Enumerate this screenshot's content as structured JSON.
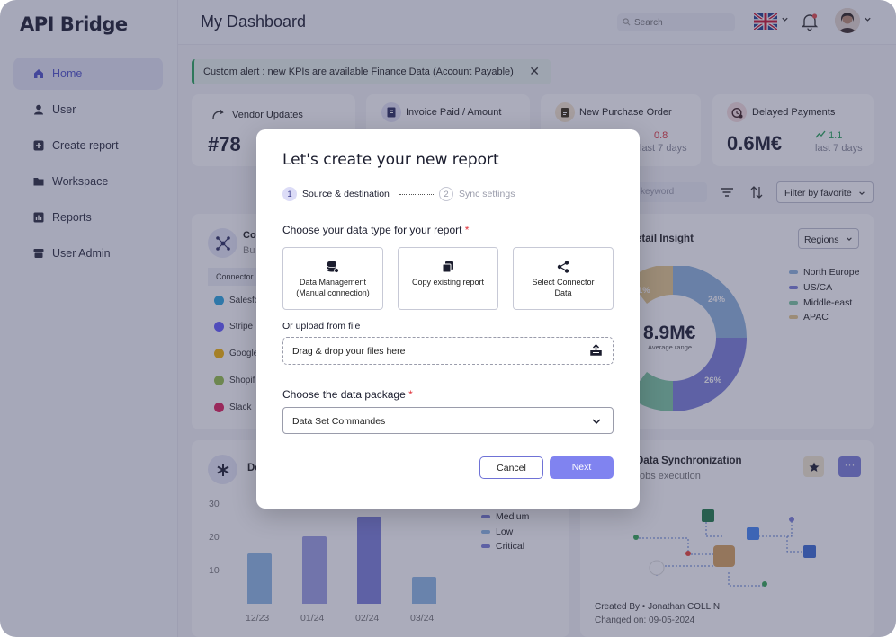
{
  "app": {
    "brand": "API Bridge"
  },
  "sidebar": {
    "items": [
      {
        "label": "Home",
        "icon": "home-icon",
        "active": true
      },
      {
        "label": "User",
        "icon": "user-icon"
      },
      {
        "label": "Create report",
        "icon": "plus-square-icon"
      },
      {
        "label": "Workspace",
        "icon": "folder-icon"
      },
      {
        "label": "Reports",
        "icon": "bar-chart-icon"
      },
      {
        "label": "User Admin",
        "icon": "admin-icon"
      }
    ]
  },
  "header": {
    "title": "My Dashboard",
    "search_placeholder": "Search"
  },
  "alert": {
    "text": "Custom alert : new KPIs are available Finance Data (Account Payable)"
  },
  "kpis": [
    {
      "title": "Vendor Updates",
      "value": "#78"
    },
    {
      "title": "Invoice Paid / Amount"
    },
    {
      "title": "New Purchase Order",
      "change": "0.8",
      "period": "last 7 days"
    },
    {
      "title": "Delayed Payments",
      "value": "0.6M€",
      "change": "1.1",
      "period": "last 7 days"
    }
  ],
  "toolbar": {
    "keyword_placeholder": "keyword",
    "filter_label": "Filter by favorite"
  },
  "connectors": {
    "title_fragment": "Co",
    "subtitle_fragment": "Bu",
    "header_fragment": "Connector",
    "items": [
      "Salesfo",
      "Stripe",
      "Google",
      "Shopif",
      "Slack"
    ]
  },
  "retail": {
    "title_fragment": "etail Insight",
    "regions_label": "Regions",
    "center_value": "8.9M€",
    "center_caption": "Average range",
    "labels": [
      "1%",
      "24%",
      "26%"
    ],
    "legend": [
      {
        "name": "North Europe",
        "color": "#8db3dc"
      },
      {
        "name": "US/CA",
        "color": "#7a7fd9"
      },
      {
        "name": "Middle-east",
        "color": "#7cc8a0"
      },
      {
        "name": "APAC",
        "color": "#e6c98a"
      }
    ]
  },
  "bottom_chart": {
    "title_fragment": "De",
    "legend": [
      "Medium",
      "Low",
      "Critical"
    ],
    "y_ticks": [
      "30",
      "20",
      "10"
    ]
  },
  "chart_data": {
    "type": "bar",
    "categories": [
      "12/23",
      "01/24",
      "02/24",
      "03/24"
    ],
    "values": [
      15,
      20,
      26,
      8
    ],
    "colors": [
      "#8db8e6",
      "#9c9fe3",
      "#7a7fd9",
      "#8db8e6"
    ],
    "ylim": [
      0,
      30
    ],
    "yticks": [
      10,
      20,
      30
    ]
  },
  "sync": {
    "title_fragment": "Data Synchronization",
    "subtitle_fragment": "obs execution",
    "created_by": "Created By • Jonathan COLLIN",
    "changed_on": "Changed on: 09-05-2024"
  },
  "modal": {
    "title": "Let's create your new report",
    "steps": [
      {
        "num": "1",
        "label": "Source & destination"
      },
      {
        "num": "2",
        "label": "Sync settings"
      }
    ],
    "data_type_label": "Choose your data type for your report",
    "required_mark": "*",
    "options": [
      {
        "label": "Data Management (Manual connection)",
        "icon": "database-icon"
      },
      {
        "label": "Copy existing report",
        "icon": "copy-icon"
      },
      {
        "label": "Select Connector Data",
        "icon": "share-nodes-icon"
      }
    ],
    "upload_label": "Or upload from file",
    "dropzone_text": "Drag & drop your files here",
    "package_label": "Choose the data package",
    "package_value": "Data Set Commandes",
    "cancel_label": "Cancel",
    "next_label": "Next"
  }
}
